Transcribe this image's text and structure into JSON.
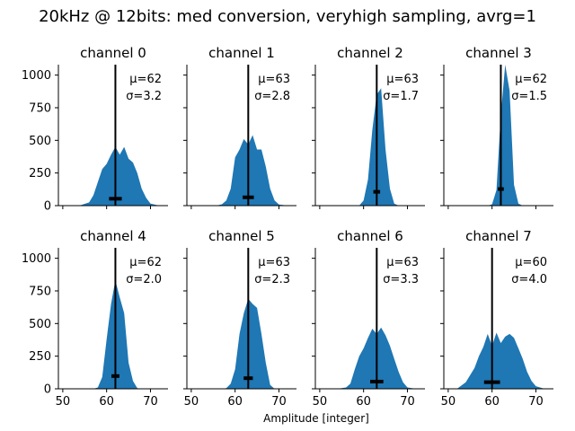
{
  "figure": {
    "title": "20kHz @ 12bits: med conversion, veryhigh sampling, avrg=1",
    "xlabel": "Amplitude [integer]",
    "fill_color": "#1f77b4",
    "line_color": "#000000"
  },
  "chart_data": {
    "type": "area",
    "layout": "2 rows x 4 columns, shared x and y axes",
    "xlim": [
      49,
      74
    ],
    "ylim": [
      0,
      1080
    ],
    "xticks": [
      50,
      60,
      70
    ],
    "yticks": [
      0,
      250,
      500,
      750,
      1000
    ],
    "x": [
      52,
      54,
      56,
      57,
      58,
      59,
      60,
      61,
      62,
      63,
      64,
      65,
      66,
      67,
      68,
      69,
      70,
      72
    ],
    "panels": [
      {
        "title": "channel 0",
        "mu_label": "μ=62",
        "sigma_label": "σ=3.2",
        "mean": 62,
        "spread": 3.2,
        "values": [
          0,
          3,
          25,
          80,
          180,
          280,
          320,
          390,
          450,
          390,
          450,
          360,
          330,
          250,
          130,
          60,
          15,
          0
        ]
      },
      {
        "title": "channel 1",
        "mu_label": "μ=63",
        "sigma_label": "σ=2.8",
        "mean": 63,
        "spread": 2.8,
        "values": [
          0,
          0,
          3,
          10,
          40,
          130,
          370,
          430,
          510,
          470,
          540,
          430,
          430,
          300,
          130,
          40,
          8,
          0
        ]
      },
      {
        "title": "channel 2",
        "mu_label": "μ=63",
        "sigma_label": "σ=1.7",
        "mean": 63,
        "spread": 1.7,
        "values": [
          0,
          0,
          0,
          0,
          0,
          0,
          40,
          200,
          580,
          850,
          900,
          430,
          130,
          15,
          0,
          0,
          0,
          0
        ]
      },
      {
        "title": "channel 3",
        "mu_label": "μ=62",
        "sigma_label": "σ=1.5",
        "mean": 62,
        "spread": 1.5,
        "values": [
          0,
          0,
          0,
          0,
          0,
          0,
          10,
          120,
          690,
          1080,
          880,
          160,
          15,
          0,
          0,
          0,
          0,
          0
        ]
      },
      {
        "title": "channel 4",
        "mu_label": "μ=62",
        "sigma_label": "σ=2.0",
        "mean": 62,
        "spread": 2.0,
        "values": [
          0,
          0,
          0,
          0,
          10,
          90,
          380,
          650,
          830,
          700,
          580,
          200,
          60,
          5,
          0,
          0,
          0,
          0
        ]
      },
      {
        "title": "channel 5",
        "mu_label": "μ=63",
        "sigma_label": "σ=2.3",
        "mean": 63,
        "spread": 2.3,
        "values": [
          0,
          0,
          0,
          0,
          5,
          40,
          150,
          420,
          580,
          690,
          650,
          620,
          420,
          200,
          30,
          0,
          0,
          0
        ]
      },
      {
        "title": "channel 6",
        "mu_label": "μ=63",
        "sigma_label": "σ=3.3",
        "mean": 63,
        "spread": 3.3,
        "values": [
          0,
          0,
          10,
          40,
          150,
          250,
          310,
          390,
          460,
          420,
          470,
          410,
          330,
          230,
          130,
          50,
          10,
          0
        ]
      },
      {
        "title": "channel 7",
        "mu_label": "μ=60",
        "sigma_label": "σ=4.0",
        "mean": 60,
        "spread": 4.0,
        "values": [
          0,
          50,
          160,
          250,
          320,
          420,
          330,
          430,
          350,
          400,
          420,
          390,
          310,
          230,
          130,
          60,
          20,
          0
        ]
      }
    ]
  }
}
